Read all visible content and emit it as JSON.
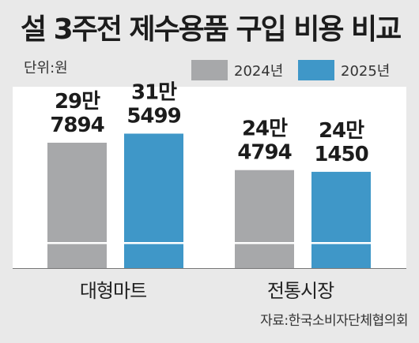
{
  "title": "설 3주전 제수용품 구입 비용 비교",
  "unit": "단위:원",
  "source": "자료:한국소비자단체협의회",
  "colors": {
    "series_2024": "#a7a8aa",
    "series_2025": "#3f97c8",
    "background": "#e9e9e9"
  },
  "legend": [
    {
      "name": "2024년",
      "color": "#a7a8aa"
    },
    {
      "name": "2025년",
      "color": "#3f97c8"
    }
  ],
  "chart_data": {
    "type": "bar",
    "title": "설 3주전 제수용품 구입 비용 비교",
    "ylabel": "단위:원",
    "categories": [
      "대형마트",
      "전통시장"
    ],
    "series": [
      {
        "name": "2024년",
        "values": [
          297894,
          244794
        ],
        "labels": [
          "29만\n7894",
          "24만\n4794"
        ]
      },
      {
        "name": "2025년",
        "values": [
          315499,
          241450
        ],
        "labels": [
          "31만\n5499",
          "24만\n1450"
        ]
      }
    ],
    "legend_position": "top-right",
    "grid": false,
    "axis_break": true
  }
}
